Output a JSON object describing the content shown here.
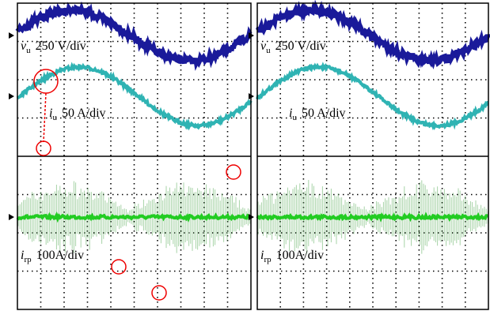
{
  "panels": [
    {
      "labels": [
        {
          "symbol": "v",
          "sub": "u",
          "text": "250 V/div"
        },
        {
          "symbol": "i",
          "sub": "u",
          "text": "50 A/div"
        },
        {
          "symbol": "i",
          "sub": "rp",
          "text": "100A/div"
        }
      ]
    },
    {
      "labels": [
        {
          "symbol": "v",
          "sub": "u",
          "text": "250 V/div"
        },
        {
          "symbol": "i",
          "sub": "u",
          "text": "50 A/div"
        },
        {
          "symbol": "i",
          "sub": "rp",
          "text": "100A/div"
        }
      ]
    }
  ]
}
